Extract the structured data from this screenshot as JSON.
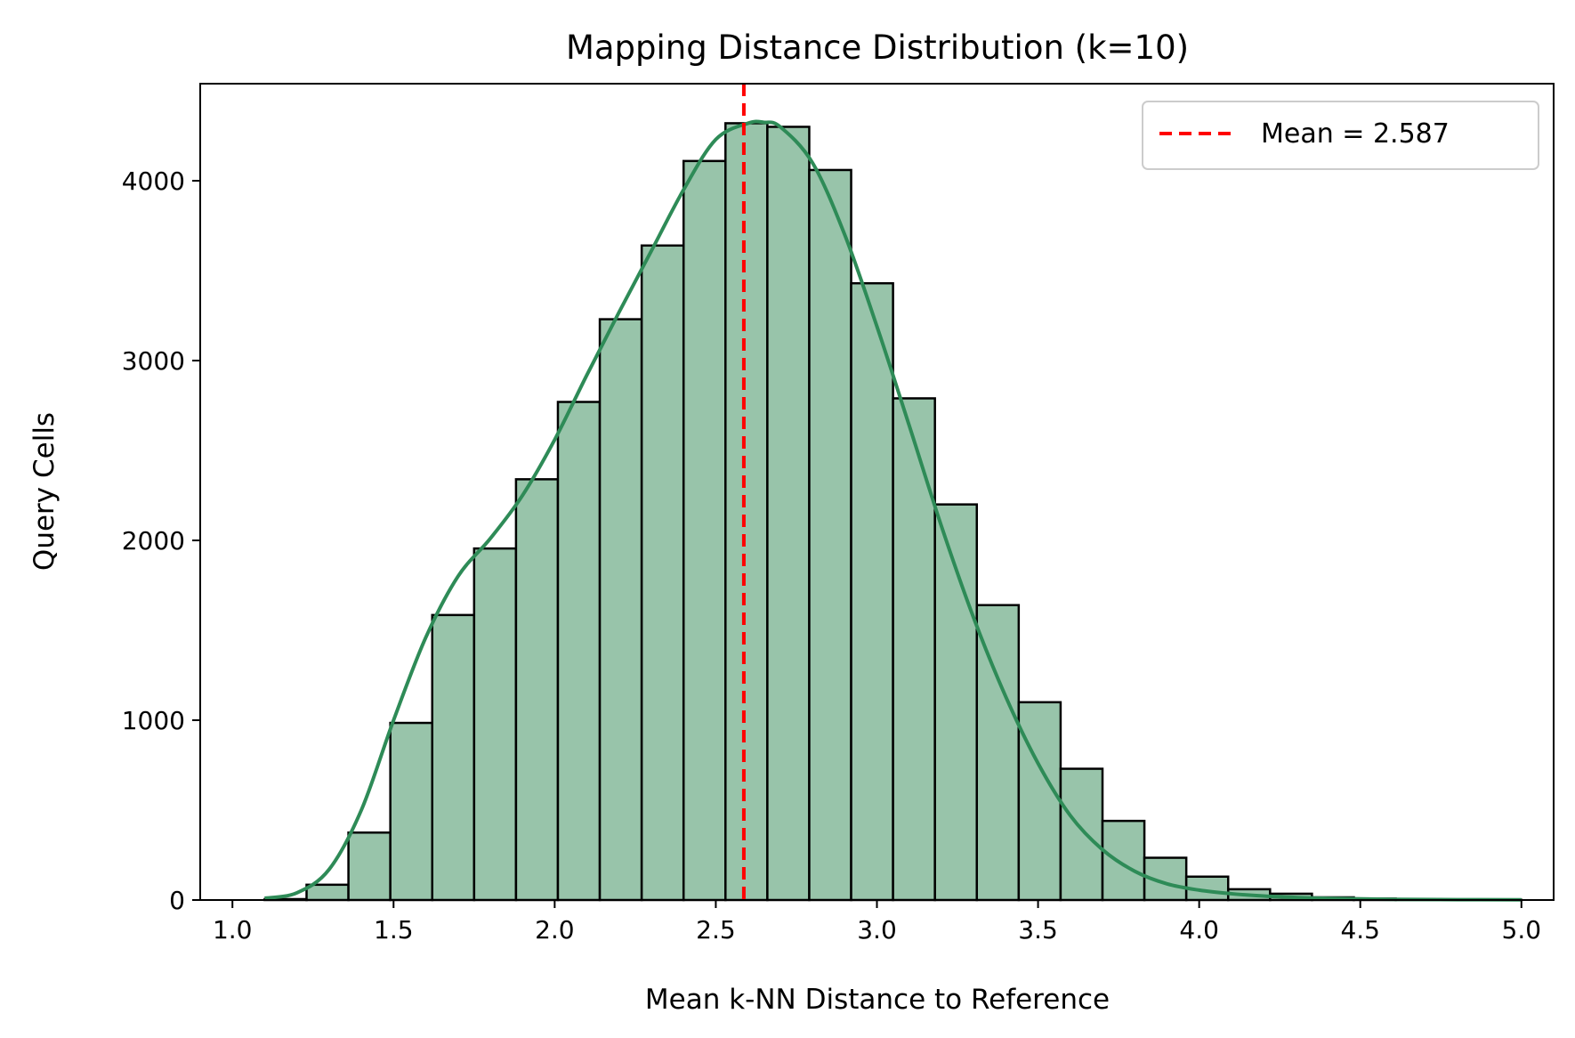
{
  "chart_data": {
    "type": "bar",
    "title": "Mapping Distance Distribution (k=10)",
    "xlabel": "Mean k-NN Distance to Reference",
    "ylabel": "Query Cells",
    "xlim": [
      0.9,
      5.1
    ],
    "ylim": [
      0,
      4540
    ],
    "xticks": [
      1.0,
      1.5,
      2.0,
      2.5,
      3.0,
      3.5,
      4.0,
      4.5,
      5.0
    ],
    "xtick_labels": [
      "1.0",
      "1.5",
      "2.0",
      "2.5",
      "3.0",
      "3.5",
      "4.0",
      "4.5",
      "5.0"
    ],
    "yticks": [
      0,
      1000,
      2000,
      3000,
      4000
    ],
    "ytick_labels": [
      "0",
      "1000",
      "2000",
      "3000",
      "4000"
    ],
    "grid": false,
    "legend_position": "top-right",
    "bin_edges": [
      1.1,
      1.23,
      1.36,
      1.49,
      1.62,
      1.75,
      1.88,
      2.01,
      2.14,
      2.27,
      2.4,
      2.53,
      2.66,
      2.79,
      2.92,
      3.05,
      3.18,
      3.31,
      3.44,
      3.57,
      3.7,
      3.83,
      3.96,
      4.09,
      4.22,
      4.35,
      4.48,
      4.61,
      4.74,
      4.87,
      5.0
    ],
    "counts": [
      5,
      85,
      375,
      985,
      1585,
      1955,
      2340,
      2770,
      3230,
      3640,
      4110,
      4320,
      4300,
      4060,
      3430,
      2790,
      2200,
      1640,
      1100,
      730,
      440,
      235,
      130,
      60,
      35,
      15,
      8,
      4,
      2,
      1
    ],
    "kde": {
      "name": "",
      "x": [
        1.1,
        1.2,
        1.3,
        1.4,
        1.5,
        1.6,
        1.7,
        1.8,
        1.9,
        2.0,
        2.1,
        2.2,
        2.3,
        2.4,
        2.5,
        2.6,
        2.65,
        2.7,
        2.8,
        2.9,
        3.0,
        3.1,
        3.2,
        3.3,
        3.4,
        3.5,
        3.6,
        3.7,
        3.8,
        3.9,
        4.0,
        4.1,
        4.2,
        4.3,
        4.4,
        4.6,
        4.8,
        5.0
      ],
      "y": [
        10,
        40,
        170,
        500,
        1000,
        1460,
        1800,
        2010,
        2250,
        2560,
        2920,
        3270,
        3610,
        3950,
        4230,
        4320,
        4325,
        4300,
        4100,
        3700,
        3190,
        2640,
        2080,
        1570,
        1130,
        760,
        470,
        280,
        160,
        90,
        55,
        35,
        22,
        14,
        9,
        4,
        2,
        1
      ]
    },
    "mean_line": {
      "value": 2.587,
      "label": "Mean = 2.587"
    },
    "colors": {
      "bar_fill": "#98c4aa",
      "bar_edge": "#000000",
      "kde_line": "#2e8b57",
      "mean_line": "#ff0000",
      "legend_border": "#cccccc"
    }
  }
}
